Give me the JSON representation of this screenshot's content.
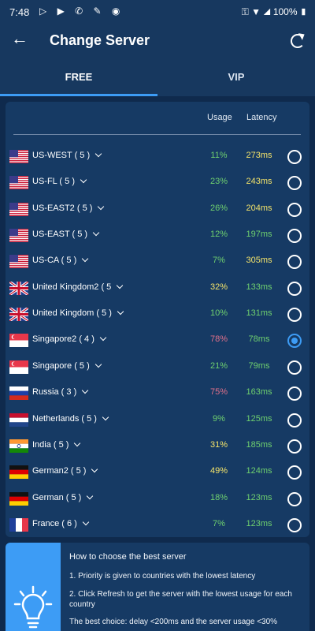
{
  "status": {
    "time": "7:48",
    "battery": "100%"
  },
  "header": {
    "title": "Change Server",
    "back_icon": "arrow-left-icon",
    "refresh_icon": "refresh-icon"
  },
  "tabs": [
    {
      "label": "FREE",
      "active": true
    },
    {
      "label": "VIP",
      "active": false
    }
  ],
  "columns": {
    "usage": "Usage",
    "latency": "Latency"
  },
  "colors": {
    "green": "#6fd06f",
    "yellow": "#f3e36a",
    "red": "#e0708a",
    "accent": "#3d9cf5"
  },
  "servers": [
    {
      "name": "US-WEST ( 5 )",
      "flag": "us",
      "usage": "11%",
      "usage_color": "#6fd06f",
      "latency": "273ms",
      "latency_color": "#f3e36a",
      "selected": false
    },
    {
      "name": "US-FL ( 5 )",
      "flag": "us",
      "usage": "23%",
      "usage_color": "#6fd06f",
      "latency": "243ms",
      "latency_color": "#f3e36a",
      "selected": false
    },
    {
      "name": "US-EAST2 ( 5 )",
      "flag": "us",
      "usage": "26%",
      "usage_color": "#6fd06f",
      "latency": "204ms",
      "latency_color": "#f3e36a",
      "selected": false
    },
    {
      "name": "US-EAST ( 5 )",
      "flag": "us",
      "usage": "12%",
      "usage_color": "#6fd06f",
      "latency": "197ms",
      "latency_color": "#6fd06f",
      "selected": false
    },
    {
      "name": "US-CA ( 5 )",
      "flag": "us",
      "usage": "7%",
      "usage_color": "#6fd06f",
      "latency": "305ms",
      "latency_color": "#f3e36a",
      "selected": false
    },
    {
      "name": "United Kingdom2 ( 5",
      "flag": "uk",
      "usage": "32%",
      "usage_color": "#f3e36a",
      "latency": "133ms",
      "latency_color": "#6fd06f",
      "selected": false
    },
    {
      "name": "United Kingdom ( 5 )",
      "flag": "uk",
      "usage": "10%",
      "usage_color": "#6fd06f",
      "latency": "131ms",
      "latency_color": "#6fd06f",
      "selected": false
    },
    {
      "name": "Singapore2 ( 4 )",
      "flag": "sg",
      "usage": "78%",
      "usage_color": "#e0708a",
      "latency": "78ms",
      "latency_color": "#6fd06f",
      "selected": true
    },
    {
      "name": "Singapore ( 5 )",
      "flag": "sg",
      "usage": "21%",
      "usage_color": "#6fd06f",
      "latency": "79ms",
      "latency_color": "#6fd06f",
      "selected": false
    },
    {
      "name": "Russia ( 3 )",
      "flag": "ru",
      "usage": "75%",
      "usage_color": "#e0708a",
      "latency": "163ms",
      "latency_color": "#6fd06f",
      "selected": false
    },
    {
      "name": "Netherlands ( 5 )",
      "flag": "nl",
      "usage": "9%",
      "usage_color": "#6fd06f",
      "latency": "125ms",
      "latency_color": "#6fd06f",
      "selected": false
    },
    {
      "name": "India ( 5 )",
      "flag": "in",
      "usage": "31%",
      "usage_color": "#f3e36a",
      "latency": "185ms",
      "latency_color": "#6fd06f",
      "selected": false
    },
    {
      "name": "German2 ( 5 )",
      "flag": "de",
      "usage": "49%",
      "usage_color": "#f3e36a",
      "latency": "124ms",
      "latency_color": "#6fd06f",
      "selected": false
    },
    {
      "name": "German ( 5 )",
      "flag": "de",
      "usage": "18%",
      "usage_color": "#6fd06f",
      "latency": "123ms",
      "latency_color": "#6fd06f",
      "selected": false
    },
    {
      "name": "France ( 6 )",
      "flag": "fr",
      "usage": "7%",
      "usage_color": "#6fd06f",
      "latency": "123ms",
      "latency_color": "#6fd06f",
      "selected": false
    }
  ],
  "tips": {
    "icon": "lightbulb-icon",
    "title": "How to choose the best server",
    "item1": "1. Priority is given to countries with the lowest latency",
    "item2": "2. Click Refresh to get the server with the lowest usage for each country",
    "item3": "The best choice: delay <200ms and the server usage <30%"
  }
}
